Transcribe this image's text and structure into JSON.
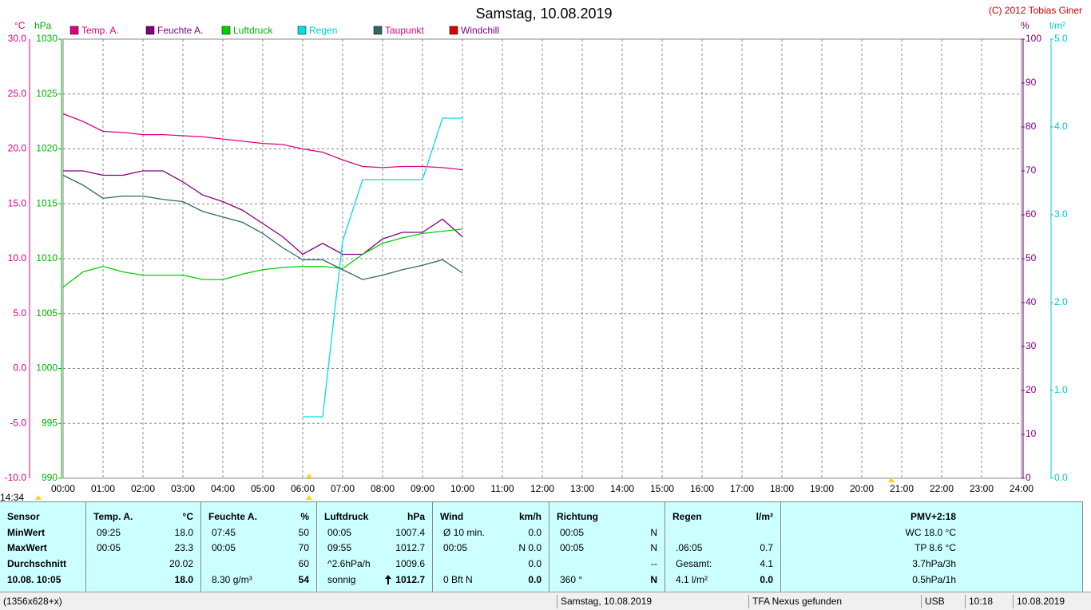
{
  "chart_data": {
    "type": "line",
    "title": "Samstag, 10.08.2019",
    "copyright": "(C) 2012 Tobias Giner",
    "corner_time": "14:34",
    "y_label": "°C",
    "y2_label": "hPa",
    "y3_label": "%",
    "y4_label": "l/m²",
    "x": [
      0,
      0.5,
      1,
      1.5,
      2,
      2.5,
      3,
      3.5,
      4,
      4.5,
      5,
      5.5,
      6,
      6.5,
      7,
      7.5,
      8,
      8.5,
      9,
      9.5,
      10
    ],
    "xlim": [
      0,
      24
    ],
    "xticks": [
      {
        "value": 0,
        "label": "00:00"
      },
      {
        "value": 1,
        "label": "01:00"
      },
      {
        "value": 2,
        "label": "02:00"
      },
      {
        "value": 3,
        "label": "03:00"
      },
      {
        "value": 4,
        "label": "04:00"
      },
      {
        "value": 5,
        "label": "05:00"
      },
      {
        "value": 6,
        "label": "06:00"
      },
      {
        "value": 7,
        "label": "07:00"
      },
      {
        "value": 8,
        "label": "08:00"
      },
      {
        "value": 9,
        "label": "09:00"
      },
      {
        "value": 10,
        "label": "10:00"
      },
      {
        "value": 11,
        "label": "11:00"
      },
      {
        "value": 12,
        "label": "12:00"
      },
      {
        "value": 13,
        "label": "13:00"
      },
      {
        "value": 14,
        "label": "14:00"
      },
      {
        "value": 15,
        "label": "15:00"
      },
      {
        "value": 16,
        "label": "16:00"
      },
      {
        "value": 17,
        "label": "17:00"
      },
      {
        "value": 18,
        "label": "18:00"
      },
      {
        "value": 19,
        "label": "19:00"
      },
      {
        "value": 20,
        "label": "20:00"
      },
      {
        "value": 21,
        "label": "21:00"
      },
      {
        "value": 22,
        "label": "22:00"
      },
      {
        "value": 23,
        "label": "23:00"
      },
      {
        "value": 24,
        "label": "24:00"
      }
    ],
    "ylim": [
      -10,
      30
    ],
    "yticks": [
      {
        "value": 30,
        "label": "30.0"
      },
      {
        "value": 25,
        "label": "25.0"
      },
      {
        "value": 20,
        "label": "20.0"
      },
      {
        "value": 15,
        "label": "15.0"
      },
      {
        "value": 10,
        "label": "10.0"
      },
      {
        "value": 5,
        "label": "5.0"
      },
      {
        "value": 0,
        "label": "0.0"
      },
      {
        "value": -5,
        "label": "-5.0"
      },
      {
        "value": -10,
        "label": "-10.0"
      }
    ],
    "y2lim": [
      990,
      1030
    ],
    "y2ticks": [
      1030,
      1025,
      1020,
      1015,
      1010,
      1005,
      1000,
      995,
      990
    ],
    "y3lim": [
      0,
      100
    ],
    "y3ticks": [
      100,
      90,
      80,
      70,
      60,
      50,
      40,
      30,
      20,
      10,
      0
    ],
    "y4lim": [
      0,
      5
    ],
    "y4ticks": [
      {
        "value": 5,
        "label": "5.0"
      },
      {
        "value": 4,
        "label": "4.0"
      },
      {
        "value": 3,
        "label": "3.0"
      },
      {
        "value": 2,
        "label": "2.0"
      },
      {
        "value": 1,
        "label": "1.0"
      },
      {
        "value": 0,
        "label": "0.0"
      }
    ],
    "grid": true,
    "series": [
      {
        "name": "Temp. A.",
        "color": "#e0007f",
        "label_color": "#e0007f",
        "axis": "y",
        "values": [
          23.2,
          22.5,
          21.6,
          21.5,
          21.3,
          21.3,
          21.2,
          21.1,
          20.9,
          20.7,
          20.5,
          20.4,
          20.0,
          19.7,
          19.0,
          18.4,
          18.3,
          18.4,
          18.4,
          18.3,
          18.1
        ]
      },
      {
        "name": "Feuchte A.",
        "color": "#800080",
        "label_color": "#800080",
        "axis": "y3",
        "values": [
          70,
          70,
          69,
          69,
          70,
          70,
          67.5,
          64.5,
          63,
          61,
          58,
          55,
          51,
          53.5,
          51,
          51,
          54.5,
          56,
          56,
          59,
          55
        ]
      },
      {
        "name": "Luftdruck",
        "color": "#00d000",
        "label_color": "#00b000",
        "axis": "y2",
        "values": [
          1007.4,
          1008.8,
          1009.3,
          1008.8,
          1008.5,
          1008.5,
          1008.5,
          1008.1,
          1008.1,
          1008.6,
          1009.0,
          1009.2,
          1009.3,
          1009.3,
          1009.1,
          1010.4,
          1011.4,
          1011.9,
          1012.3,
          1012.5,
          1012.7
        ]
      },
      {
        "name": "Regen",
        "color": "#00e0e0",
        "label_color": "#00d0d0",
        "axis": "y4",
        "values": [
          null,
          null,
          null,
          null,
          null,
          null,
          null,
          null,
          null,
          null,
          null,
          null,
          0.7,
          0.7,
          2.7,
          3.4,
          3.4,
          3.4,
          3.4,
          4.1,
          4.1
        ]
      },
      {
        "name": "Taupunkt",
        "color": "#336666",
        "label_color": "#e0007f",
        "axis": "y",
        "values": [
          17.6,
          16.7,
          15.5,
          15.7,
          15.7,
          15.4,
          15.2,
          14.3,
          13.8,
          13.3,
          12.3,
          11.0,
          9.9,
          9.9,
          9.0,
          8.1,
          8.5,
          9.0,
          9.4,
          9.9,
          8.7
        ]
      },
      {
        "name": "Windchill",
        "color": "#e00000",
        "label_color": "#800080",
        "axis": "y",
        "values": [
          null,
          null,
          null,
          null,
          null,
          null,
          null,
          null,
          null,
          null,
          null,
          null,
          null,
          null,
          null,
          null,
          null,
          null,
          null,
          null,
          null
        ]
      }
    ]
  },
  "panel": {
    "columns": [
      {
        "title": "Sensor",
        "rows": [
          {
            "left": "MinWert"
          },
          {
            "left": "MaxWert"
          },
          {
            "left": "Durchschnitt"
          },
          {
            "left": "10.08. 10:05"
          }
        ]
      },
      {
        "title": "Temp. A.",
        "unit": "°C",
        "rows": [
          {
            "left": "09:25",
            "right": "18.0"
          },
          {
            "left": "00:05",
            "right": "23.3"
          },
          {
            "right": "20.02"
          },
          {
            "right": "18.0"
          }
        ]
      },
      {
        "title": "Feuchte A.",
        "unit": "%",
        "rows": [
          {
            "left": "07:45",
            "right": "50"
          },
          {
            "left": "00:05",
            "right": "70"
          },
          {
            "right": "60"
          },
          {
            "left": "8.30 g/m³",
            "right": "54"
          }
        ]
      },
      {
        "title": "Luftdruck",
        "unit": "hPa",
        "rows": [
          {
            "left": "00:05",
            "right": "1007.4"
          },
          {
            "left": "09:55",
            "right": "1012.7"
          },
          {
            "left": "^2.6hPa/h",
            "right": "1009.6"
          },
          {
            "left": "sonnig",
            "right": "1012.7"
          }
        ]
      },
      {
        "title": "Wind",
        "unit": "km/h",
        "rows": [
          {
            "left": "Ø 10 min.",
            "right": "0.0"
          },
          {
            "left": "00:05",
            "right": "N 0.0"
          },
          {
            "right": "0.0"
          },
          {
            "left": "0 Bft N",
            "right": "0.0"
          }
        ]
      },
      {
        "title": "Richtung",
        "rows": [
          {
            "left": "00:05",
            "right": "N"
          },
          {
            "left": "00:05",
            "right": "N"
          },
          {
            "right": "--"
          },
          {
            "left": "360 °",
            "right": "N"
          }
        ]
      },
      {
        "title": "Regen",
        "unit": "l/m²",
        "rows": [
          null,
          {
            "left": ".06:05",
            "right": "0.7"
          },
          {
            "left": "Gesamt:",
            "right": "4.1"
          },
          {
            "left": "4.1 l/m²",
            "right": "0.0"
          }
        ]
      },
      {
        "title": "PMV+2:18",
        "rows": [
          {
            "right": "WC 18.0 °C"
          },
          {
            "right": "TP 8.6 °C"
          },
          {
            "right": "3.7hPa/3h"
          },
          {
            "right": "0.5hPa/1h"
          }
        ]
      }
    ]
  },
  "status_bar": [
    "(1356x628+x)",
    "Samstag, 10.08.2019",
    "TFA Nexus gefunden",
    "USB",
    "10:18",
    "10.08.2019"
  ]
}
